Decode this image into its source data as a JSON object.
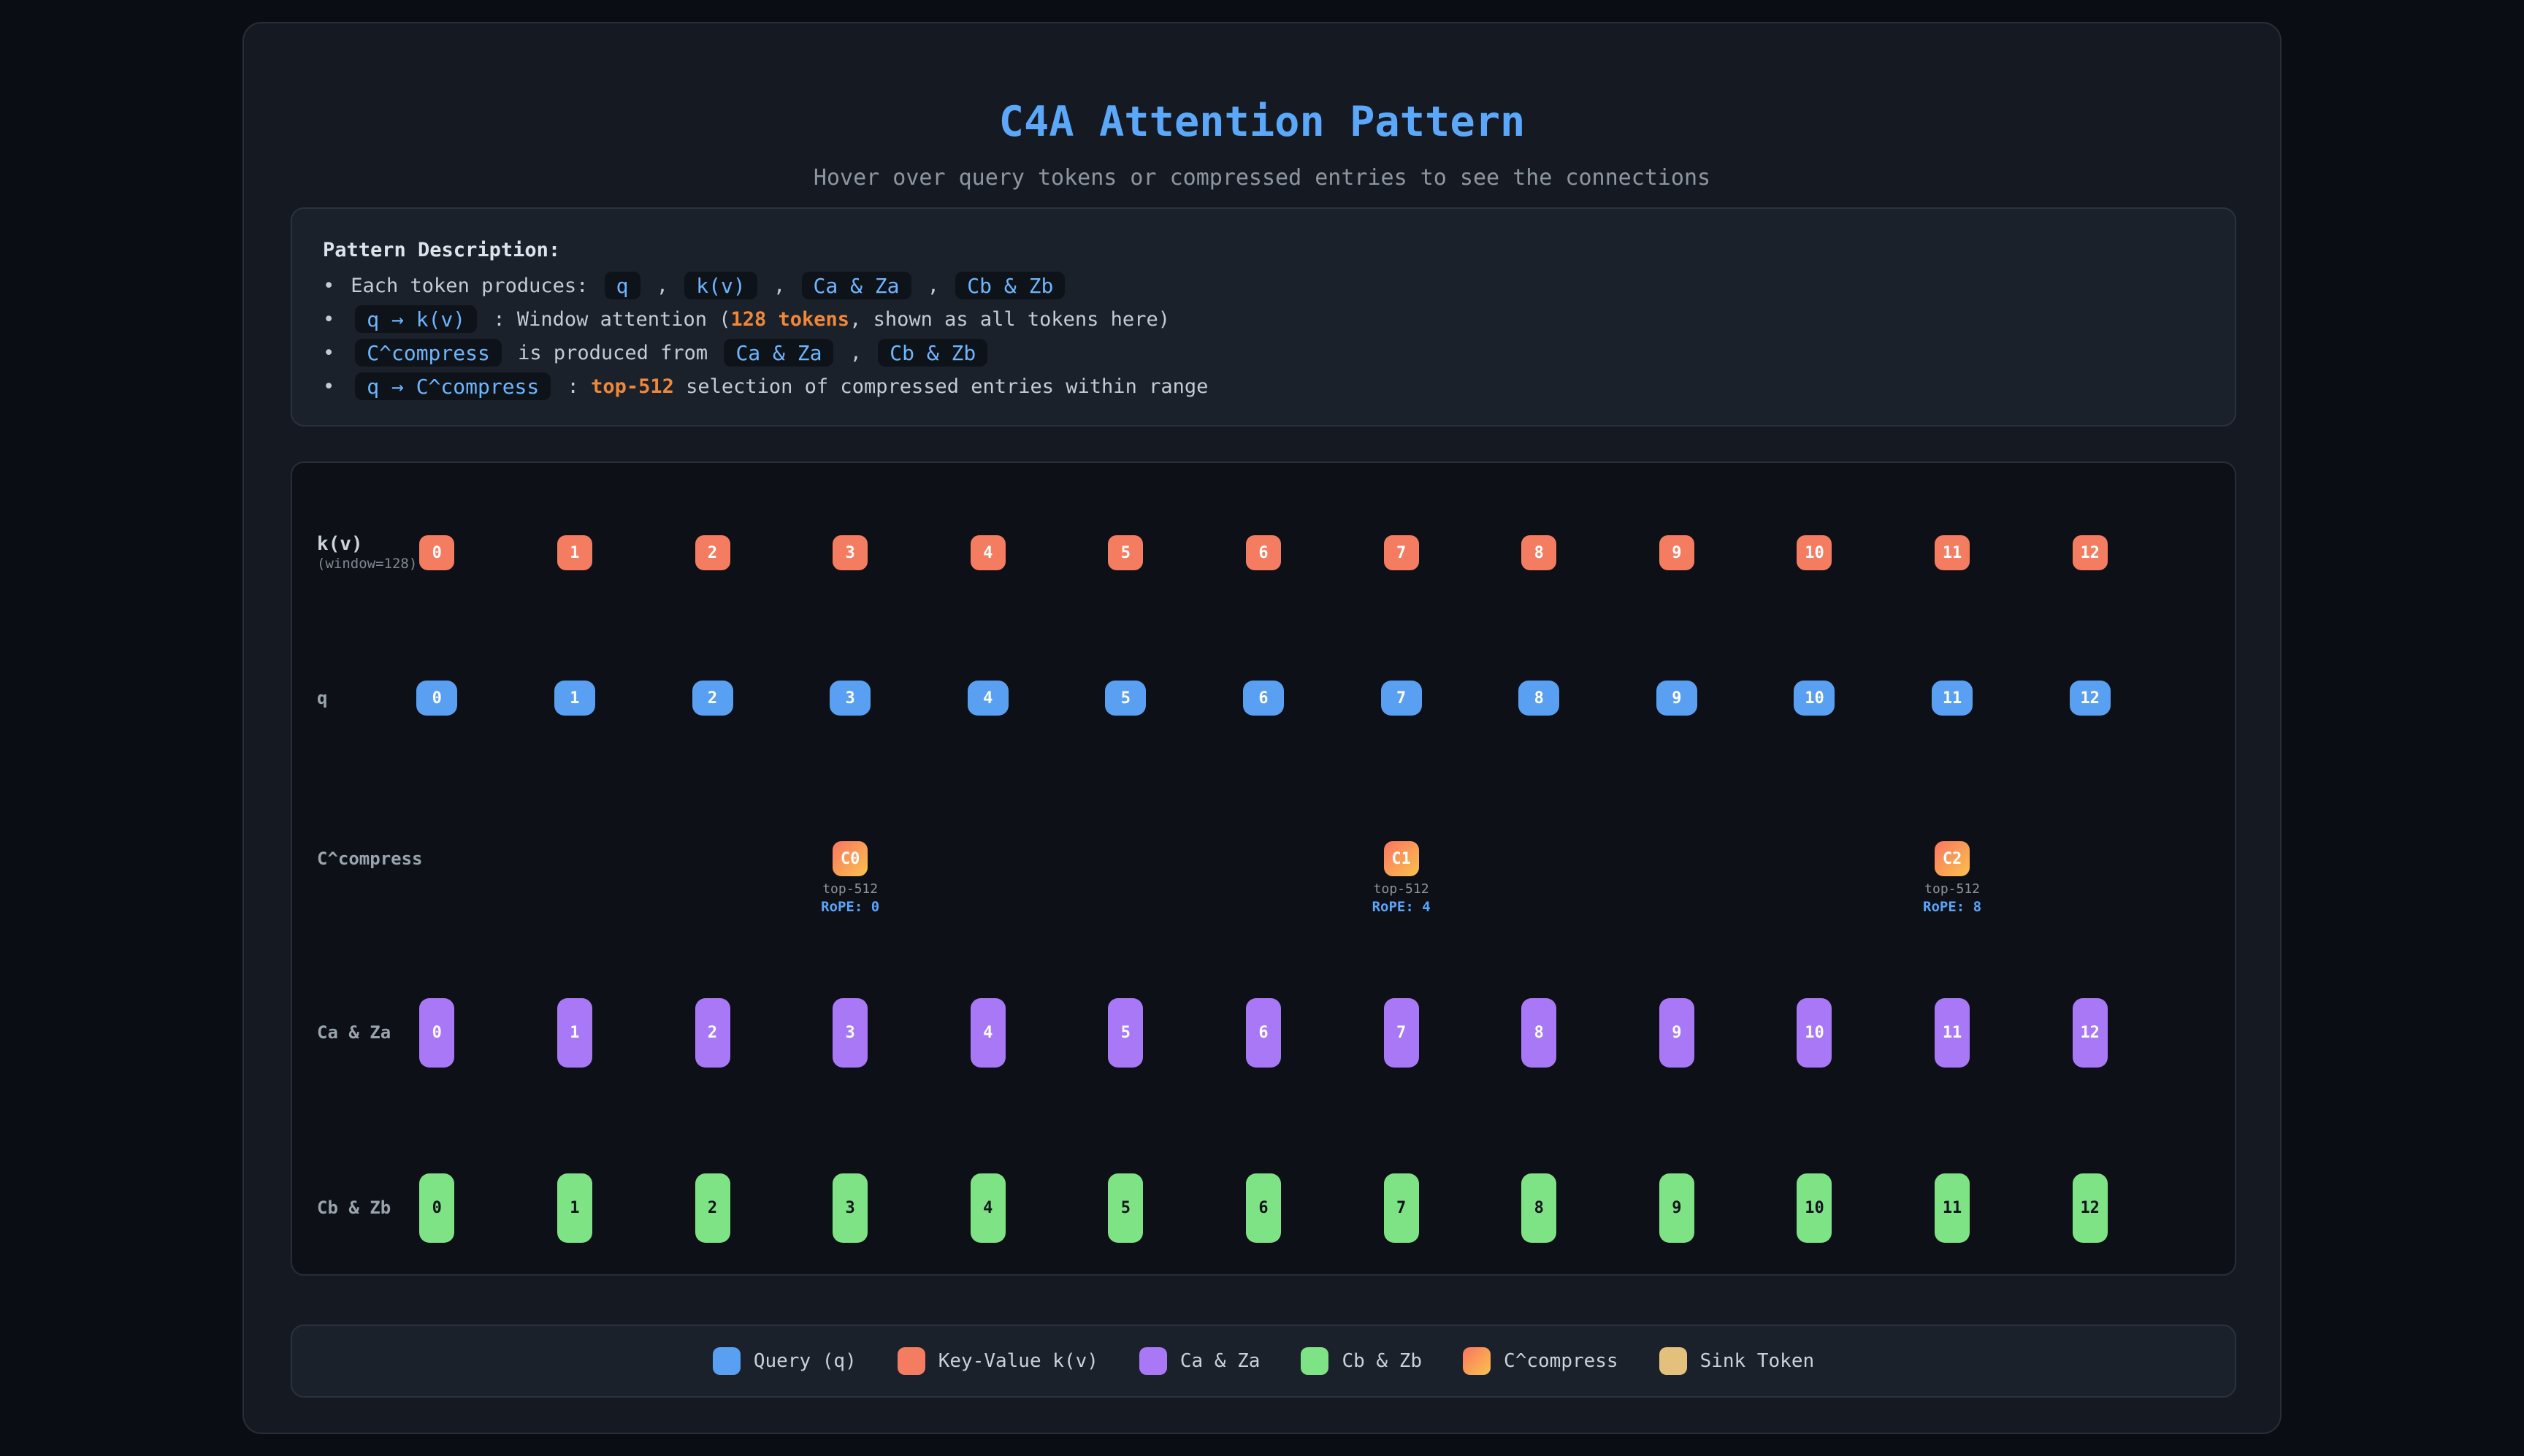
{
  "title": "C4A Attention Pattern",
  "subtitle": "Hover over query tokens or compressed entries to see the connections",
  "description": {
    "heading": "Pattern Description:",
    "bullet_char": "•",
    "bullets": [
      {
        "segments": [
          {
            "t": "text",
            "v": "Each token produces: "
          },
          {
            "t": "chip",
            "v": "q"
          },
          {
            "t": "text",
            "v": " , "
          },
          {
            "t": "chip",
            "v": "k(v)"
          },
          {
            "t": "text",
            "v": " , "
          },
          {
            "t": "chip",
            "v": "Ca & Za"
          },
          {
            "t": "text",
            "v": " , "
          },
          {
            "t": "chip",
            "v": "Cb & Zb"
          }
        ]
      },
      {
        "segments": [
          {
            "t": "chip",
            "v": "q → k(v)"
          },
          {
            "t": "text",
            "v": " : Window attention ("
          },
          {
            "t": "orange",
            "v": "128 tokens"
          },
          {
            "t": "text",
            "v": ", shown as all tokens here)"
          }
        ]
      },
      {
        "segments": [
          {
            "t": "chip",
            "v": "C^compress"
          },
          {
            "t": "text",
            "v": " is produced from "
          },
          {
            "t": "chip",
            "v": "Ca & Za"
          },
          {
            "t": "text",
            "v": " , "
          },
          {
            "t": "chip",
            "v": "Cb & Zb"
          }
        ]
      },
      {
        "segments": [
          {
            "t": "chip",
            "v": "q → C^compress"
          },
          {
            "t": "text",
            "v": " : "
          },
          {
            "t": "orange",
            "v": "top-512"
          },
          {
            "t": "text",
            "v": " selection of compressed entries within range"
          }
        ]
      }
    ]
  },
  "diagram": {
    "columns": 13,
    "rows": {
      "kv": {
        "label": "k(v)",
        "sublabel": "(window=128)",
        "tokens": [
          "0",
          "1",
          "2",
          "3",
          "4",
          "5",
          "6",
          "7",
          "8",
          "9",
          "10",
          "11",
          "12"
        ]
      },
      "q": {
        "label": "q",
        "tokens": [
          "0",
          "1",
          "2",
          "3",
          "4",
          "5",
          "6",
          "7",
          "8",
          "9",
          "10",
          "11",
          "12"
        ]
      },
      "compress": {
        "label": "C^compress",
        "entries": [
          {
            "name": "C0",
            "col": 3,
            "selection": "top-512",
            "rope": "RoPE: 0"
          },
          {
            "name": "C1",
            "col": 7,
            "selection": "top-512",
            "rope": "RoPE: 4"
          },
          {
            "name": "C2",
            "col": 11,
            "selection": "top-512",
            "rope": "RoPE: 8"
          }
        ]
      },
      "ca": {
        "label": "Ca & Za",
        "tokens": [
          "0",
          "1",
          "2",
          "3",
          "4",
          "5",
          "6",
          "7",
          "8",
          "9",
          "10",
          "11",
          "12"
        ]
      },
      "cb": {
        "label": "Cb & Zb",
        "tokens": [
          "0",
          "1",
          "2",
          "3",
          "4",
          "5",
          "6",
          "7",
          "8",
          "9",
          "10",
          "11",
          "12"
        ]
      }
    }
  },
  "legend": {
    "items": [
      {
        "label": "Query (q)",
        "swatch": "query"
      },
      {
        "label": "Key-Value k(v)",
        "swatch": "kv"
      },
      {
        "label": "Ca & Za",
        "swatch": "ca"
      },
      {
        "label": "Cb & Zb",
        "swatch": "cb"
      },
      {
        "label": "C^compress",
        "swatch": "compress"
      },
      {
        "label": "Sink Token",
        "swatch": "sink"
      }
    ]
  },
  "colors": {
    "page": "#0a0e14",
    "card": "#151a22",
    "panel": "#1b212b",
    "dark": "#0d1117",
    "border": "#272e38",
    "border2": "#2b323d",
    "chipbg": "#0e1319",
    "title": "#5ba7fa",
    "muted": "#8d96a0",
    "heading": "#dde3e9",
    "text": "#c3cbd3",
    "label": "#9aa4ae",
    "labelbright": "#ccd3da",
    "dim": "#7f8893",
    "dim2": "#8b949e",
    "legendtext": "#c9d1d9",
    "chiptext": "#6cb6ff",
    "orange": "#ef8838",
    "rope": "#58a6ff",
    "query": "#5aa0f2",
    "kv": "#f47c60",
    "ca": "#a878f7",
    "cb": "#7ee385",
    "compress_a": "#f97562",
    "compress_b": "#fbc24c",
    "sink": "#e3c17d"
  }
}
